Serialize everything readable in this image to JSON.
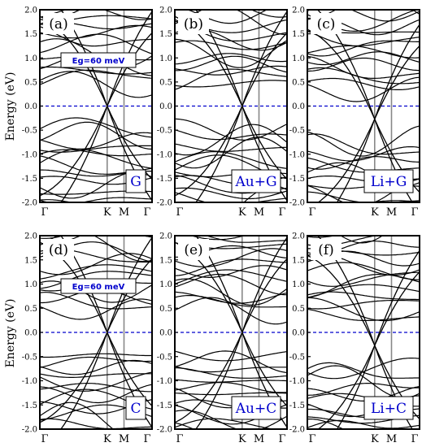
{
  "chart_data": {
    "type": "line",
    "ylabel": "Energy (eV)",
    "ylim": [
      -2.0,
      2.0
    ],
    "yticks": [
      "2.0",
      "1.5",
      "1.0",
      "0.5",
      "0.0",
      "-0.5",
      "-1.0",
      "-1.5",
      "-2.0"
    ],
    "yticks_values": [
      2.0,
      1.5,
      1.0,
      0.5,
      0.0,
      -0.5,
      -1.0,
      -1.5,
      -2.0
    ],
    "kpoints": [
      "Γ",
      "K",
      "M",
      "Γ"
    ],
    "kpoint_positions": [
      0,
      0.6,
      0.75,
      1.0
    ],
    "fermi_level": 0.0,
    "fermi_line_color": "#0000cc",
    "band_color": "#000000",
    "panels": [
      {
        "label": "(a)",
        "system": "G",
        "annotation": "Eg=60 meV"
      },
      {
        "label": "(b)",
        "system": "Au+G",
        "annotation": ""
      },
      {
        "label": "(c)",
        "system": "Li+G",
        "annotation": ""
      },
      {
        "label": "(d)",
        "system": "C",
        "annotation": "Eg=60 meV"
      },
      {
        "label": "(e)",
        "system": "Au+C",
        "annotation": ""
      },
      {
        "label": "(f)",
        "system": "Li+C",
        "annotation": ""
      }
    ]
  }
}
